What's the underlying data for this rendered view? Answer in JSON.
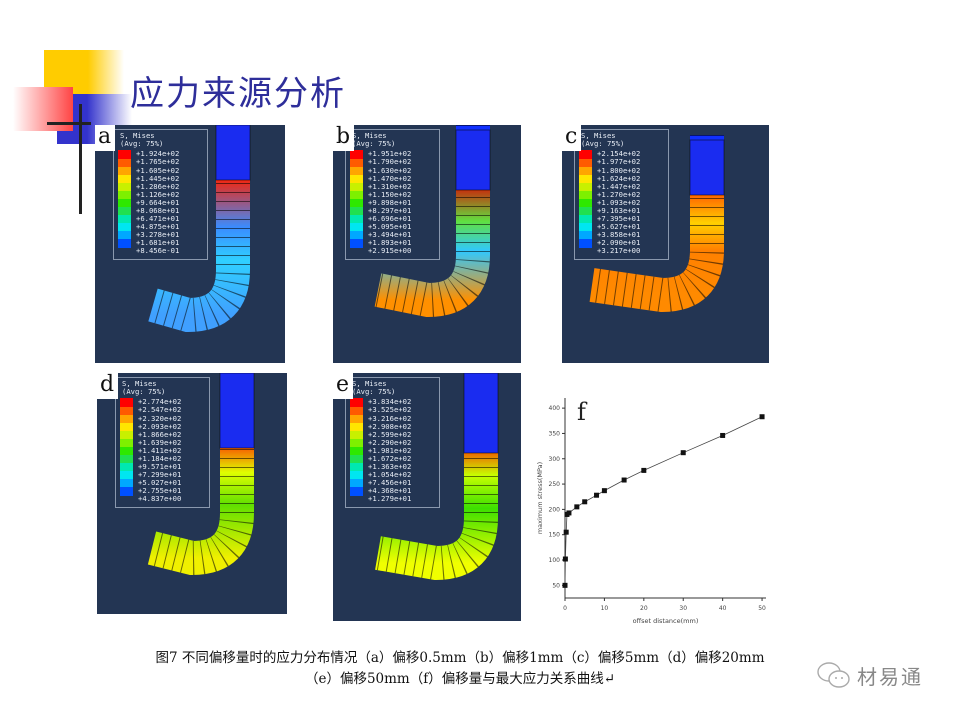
{
  "slide": {
    "title": "应力来源分析"
  },
  "legend_common": {
    "title": "S, Mises",
    "avg": "(Avg: 75%)"
  },
  "legend_colors": [
    "#ff0000",
    "#ff5a00",
    "#ffa500",
    "#ffe600",
    "#c8f000",
    "#7ef000",
    "#2ee800",
    "#20e050",
    "#00e8b0",
    "#00e6f0",
    "#00a8ff",
    "#0050ff",
    "#0000e0"
  ],
  "panels": [
    {
      "letter": "a",
      "values": [
        "+1.924e+02",
        "+1.765e+02",
        "+1.605e+02",
        "+1.445e+02",
        "+1.286e+02",
        "+1.126e+02",
        "+9.664e+01",
        "+8.068e+01",
        "+6.471e+01",
        "+4.875e+01",
        "+3.278e+01",
        "+1.681e+01",
        "+8.456e-01"
      ]
    },
    {
      "letter": "b",
      "values": [
        "+1.951e+02",
        "+1.790e+02",
        "+1.630e+02",
        "+1.470e+02",
        "+1.310e+02",
        "+1.150e+02",
        "+9.898e+01",
        "+8.297e+01",
        "+6.696e+01",
        "+5.095e+01",
        "+3.494e+01",
        "+1.893e+01",
        "+2.915e+00"
      ]
    },
    {
      "letter": "c",
      "values": [
        "+2.154e+02",
        "+1.977e+02",
        "+1.800e+02",
        "+1.624e+02",
        "+1.447e+02",
        "+1.270e+02",
        "+1.093e+02",
        "+9.163e+01",
        "+7.395e+01",
        "+5.627e+01",
        "+3.858e+01",
        "+2.090e+01",
        "+3.217e+00"
      ]
    },
    {
      "letter": "d",
      "values": [
        "+2.774e+02",
        "+2.547e+02",
        "+2.320e+02",
        "+2.093e+02",
        "+1.866e+02",
        "+1.639e+02",
        "+1.411e+02",
        "+1.184e+02",
        "+9.571e+01",
        "+7.299e+01",
        "+5.027e+01",
        "+2.755e+01",
        "+4.837e+00"
      ]
    },
    {
      "letter": "e",
      "values": [
        "+3.834e+02",
        "+3.525e+02",
        "+3.216e+02",
        "+2.908e+02",
        "+2.599e+02",
        "+2.290e+02",
        "+1.981e+02",
        "+1.672e+02",
        "+1.363e+02",
        "+1.054e+02",
        "+7.456e+01",
        "+4.368e+01",
        "+1.279e+01"
      ]
    }
  ],
  "chart_data": {
    "type": "line",
    "panel_label": "f",
    "xlabel": "offset distance(mm)",
    "ylabel": "maximum stress(MPa)",
    "xlim": [
      0,
      51
    ],
    "ylim": [
      25,
      420
    ],
    "xticks": [
      0,
      10,
      20,
      30,
      40,
      50
    ],
    "yticks": [
      50,
      100,
      150,
      200,
      250,
      300,
      350,
      400
    ],
    "grid": false,
    "marker": "square",
    "x": [
      0,
      0.1,
      0.3,
      0.5,
      1,
      3,
      5,
      8,
      10,
      15,
      20,
      30,
      40,
      50
    ],
    "y": [
      50,
      102,
      155,
      190,
      193,
      205,
      215,
      228,
      237,
      258,
      277,
      312,
      346,
      383
    ]
  },
  "caption": {
    "line1": "图7 不同偏移量时的应力分布情况（a）偏移0.5mm（b）偏移1mm（c）偏移5mm（d）偏移20mm",
    "line2": "（e）偏移50mm（f）偏移量与最大应力关系曲线↵"
  },
  "watermark": {
    "text": "材易通",
    "icon": "wechat-icon"
  }
}
